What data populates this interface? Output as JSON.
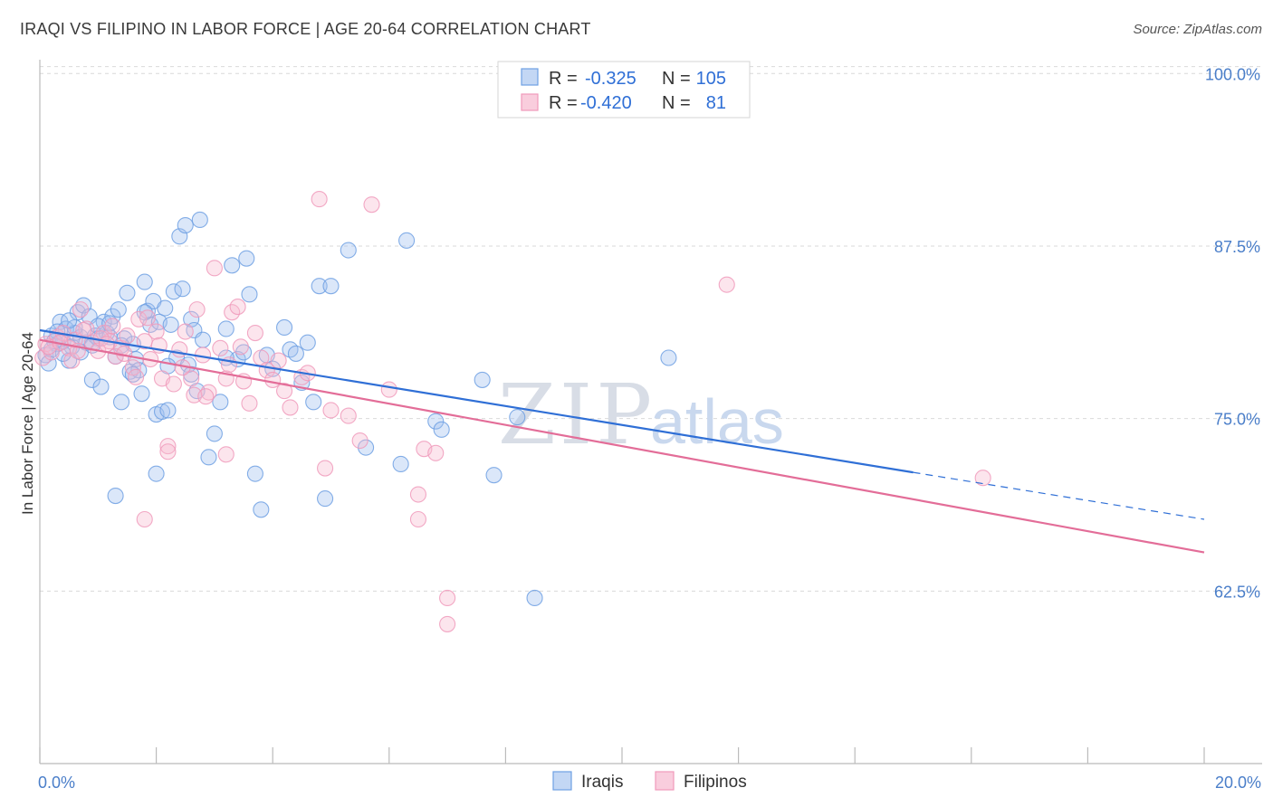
{
  "title": "IRAQI VS FILIPINO IN LABOR FORCE | AGE 20-64 CORRELATION CHART",
  "source": "Source: ZipAtlas.com",
  "watermark": {
    "zip": "ZIP",
    "atlas": "atlas"
  },
  "legend": {
    "r_label": "R =",
    "n_label": "N =",
    "rows": [
      {
        "r": "-0.325",
        "n": "105",
        "color": "#6fa0e3"
      },
      {
        "r": "-0.420",
        "n": "81",
        "color": "#f09abb"
      }
    ]
  },
  "bottom_legend": [
    "Iraqis",
    "Filipinos"
  ],
  "chart_data": {
    "type": "scatter",
    "title": "IRAQI VS FILIPINO IN LABOR FORCE | AGE 20-64 CORRELATION CHART",
    "xlabel": "",
    "ylabel": "In Labor Force | Age 20-64",
    "xlim": [
      0,
      20
    ],
    "ylim": [
      50,
      101
    ],
    "x_tick_labels": [
      "0.0%",
      "20.0%"
    ],
    "y_ticks": [
      62.5,
      75.0,
      87.5,
      100.0
    ],
    "y_tick_labels": [
      "62.5%",
      "75.0%",
      "87.5%",
      "100.0%"
    ],
    "grid": true,
    "legend_position": "top-center",
    "series": [
      {
        "name": "Iraqis",
        "color": "#6fa0e3",
        "trend": {
          "x0": 0,
          "y0": 81.4,
          "x1": 15.0,
          "y1": 71.1,
          "dashed_to_x": 20,
          "dashed_to_y": 67.7
        },
        "points": [
          [
            0.1,
            79.6
          ],
          [
            0.2,
            81.0
          ],
          [
            0.3,
            80.4
          ],
          [
            0.35,
            82.0
          ],
          [
            0.4,
            80.6
          ],
          [
            0.45,
            81.5
          ],
          [
            0.5,
            79.2
          ],
          [
            0.55,
            80.2
          ],
          [
            0.6,
            81.2
          ],
          [
            0.65,
            82.7
          ],
          [
            0.7,
            80.9
          ],
          [
            0.75,
            83.2
          ],
          [
            0.8,
            80.5
          ],
          [
            0.85,
            82.4
          ],
          [
            0.9,
            77.8
          ],
          [
            0.95,
            81.0
          ],
          [
            1.0,
            80.8
          ],
          [
            1.05,
            77.3
          ],
          [
            1.1,
            82.0
          ],
          [
            1.15,
            81.2
          ],
          [
            1.2,
            80.9
          ],
          [
            1.25,
            82.4
          ],
          [
            1.3,
            79.5
          ],
          [
            1.35,
            82.9
          ],
          [
            1.4,
            76.2
          ],
          [
            1.45,
            80.8
          ],
          [
            1.5,
            84.1
          ],
          [
            1.55,
            78.4
          ],
          [
            1.6,
            80.4
          ],
          [
            1.65,
            79.3
          ],
          [
            1.7,
            78.5
          ],
          [
            1.75,
            76.8
          ],
          [
            1.8,
            84.9
          ],
          [
            1.85,
            82.8
          ],
          [
            1.9,
            81.8
          ],
          [
            1.95,
            83.5
          ],
          [
            2.0,
            75.3
          ],
          [
            2.05,
            82.0
          ],
          [
            2.1,
            75.5
          ],
          [
            2.15,
            83.0
          ],
          [
            2.2,
            75.6
          ],
          [
            2.25,
            81.8
          ],
          [
            2.3,
            84.2
          ],
          [
            2.35,
            79.4
          ],
          [
            2.4,
            88.2
          ],
          [
            2.45,
            84.4
          ],
          [
            2.5,
            89.0
          ],
          [
            2.55,
            78.9
          ],
          [
            2.6,
            82.2
          ],
          [
            2.65,
            81.4
          ],
          [
            2.7,
            77.0
          ],
          [
            2.75,
            89.4
          ],
          [
            2.8,
            80.7
          ],
          [
            2.9,
            72.2
          ],
          [
            3.0,
            73.9
          ],
          [
            3.1,
            76.2
          ],
          [
            3.2,
            81.5
          ],
          [
            3.3,
            86.1
          ],
          [
            3.4,
            79.3
          ],
          [
            3.5,
            79.8
          ],
          [
            3.55,
            86.6
          ],
          [
            3.6,
            84.0
          ],
          [
            3.7,
            71.0
          ],
          [
            3.8,
            68.4
          ],
          [
            3.9,
            79.6
          ],
          [
            4.0,
            78.6
          ],
          [
            4.2,
            81.6
          ],
          [
            4.3,
            80.0
          ],
          [
            4.4,
            79.7
          ],
          [
            4.5,
            77.6
          ],
          [
            4.6,
            80.5
          ],
          [
            4.7,
            76.2
          ],
          [
            4.8,
            84.6
          ],
          [
            4.9,
            69.2
          ],
          [
            5.0,
            84.6
          ],
          [
            5.3,
            87.2
          ],
          [
            5.6,
            72.9
          ],
          [
            6.3,
            87.9
          ],
          [
            6.2,
            71.7
          ],
          [
            6.8,
            74.8
          ],
          [
            6.9,
            74.2
          ],
          [
            7.6,
            77.8
          ],
          [
            7.8,
            70.9
          ],
          [
            8.2,
            75.1
          ],
          [
            8.5,
            62.0
          ],
          [
            10.8,
            79.4
          ],
          [
            1.3,
            69.4
          ],
          [
            2.0,
            71.0
          ],
          [
            0.2,
            80.0
          ],
          [
            0.15,
            79.0
          ],
          [
            0.3,
            81.3
          ],
          [
            0.4,
            79.7
          ],
          [
            0.6,
            81.6
          ],
          [
            0.7,
            79.8
          ],
          [
            1.0,
            81.7
          ],
          [
            1.2,
            81.9
          ],
          [
            1.4,
            80.3
          ],
          [
            1.6,
            78.2
          ],
          [
            1.8,
            82.7
          ],
          [
            2.2,
            78.8
          ],
          [
            2.6,
            78.2
          ],
          [
            0.25,
            80.6
          ],
          [
            0.5,
            82.1
          ],
          [
            0.9,
            80.3
          ],
          [
            3.2,
            79.4
          ]
        ]
      },
      {
        "name": "Filipinos",
        "color": "#f09abb",
        "trend": {
          "x0": 0,
          "y0": 80.7,
          "x1": 20,
          "y1": 65.3
        },
        "points": [
          [
            0.05,
            79.4
          ],
          [
            0.1,
            80.4
          ],
          [
            0.2,
            79.8
          ],
          [
            0.3,
            80.9
          ],
          [
            0.4,
            81.2
          ],
          [
            0.5,
            80.1
          ],
          [
            0.6,
            80.7
          ],
          [
            0.7,
            82.9
          ],
          [
            0.8,
            81.5
          ],
          [
            0.9,
            80.5
          ],
          [
            1.0,
            79.9
          ],
          [
            1.1,
            81.2
          ],
          [
            1.2,
            80.6
          ],
          [
            1.3,
            79.5
          ],
          [
            1.4,
            80.1
          ],
          [
            1.5,
            81.0
          ],
          [
            1.6,
            78.7
          ],
          [
            1.7,
            82.2
          ],
          [
            1.8,
            80.6
          ],
          [
            1.9,
            79.3
          ],
          [
            2.0,
            81.3
          ],
          [
            2.1,
            77.9
          ],
          [
            2.2,
            73.0
          ],
          [
            2.3,
            77.5
          ],
          [
            2.4,
            80.0
          ],
          [
            2.5,
            81.3
          ],
          [
            2.6,
            77.9
          ],
          [
            2.7,
            82.9
          ],
          [
            2.8,
            79.6
          ],
          [
            2.9,
            76.9
          ],
          [
            3.0,
            85.9
          ],
          [
            3.1,
            80.1
          ],
          [
            3.2,
            77.9
          ],
          [
            3.3,
            82.7
          ],
          [
            3.4,
            83.1
          ],
          [
            3.5,
            77.7
          ],
          [
            3.6,
            76.1
          ],
          [
            3.7,
            81.2
          ],
          [
            3.8,
            79.4
          ],
          [
            3.9,
            78.5
          ],
          [
            4.0,
            77.8
          ],
          [
            4.1,
            79.2
          ],
          [
            4.2,
            77.0
          ],
          [
            4.3,
            75.8
          ],
          [
            4.5,
            78.0
          ],
          [
            4.6,
            78.3
          ],
          [
            4.8,
            90.9
          ],
          [
            4.9,
            71.4
          ],
          [
            5.0,
            75.6
          ],
          [
            5.3,
            75.2
          ],
          [
            5.5,
            73.4
          ],
          [
            5.7,
            90.5
          ],
          [
            6.0,
            77.1
          ],
          [
            6.5,
            69.5
          ],
          [
            6.6,
            72.8
          ],
          [
            6.8,
            72.5
          ],
          [
            7.0,
            62.0
          ],
          [
            7.0,
            60.1
          ],
          [
            11.8,
            84.7
          ],
          [
            16.2,
            70.7
          ],
          [
            1.8,
            67.7
          ],
          [
            2.2,
            72.6
          ],
          [
            3.2,
            72.4
          ],
          [
            6.5,
            67.7
          ],
          [
            0.15,
            80.2
          ],
          [
            0.35,
            80.5
          ],
          [
            0.55,
            79.2
          ],
          [
            0.75,
            81.4
          ],
          [
            1.05,
            80.8
          ],
          [
            1.25,
            81.7
          ],
          [
            1.45,
            79.7
          ],
          [
            1.65,
            78.0
          ],
          [
            1.85,
            82.3
          ],
          [
            2.05,
            80.3
          ],
          [
            2.45,
            78.7
          ],
          [
            2.65,
            76.7
          ],
          [
            2.85,
            76.6
          ],
          [
            3.25,
            78.9
          ],
          [
            3.45,
            80.2
          ],
          [
            1.15,
            80.4
          ],
          [
            0.65,
            79.9
          ]
        ]
      }
    ]
  }
}
